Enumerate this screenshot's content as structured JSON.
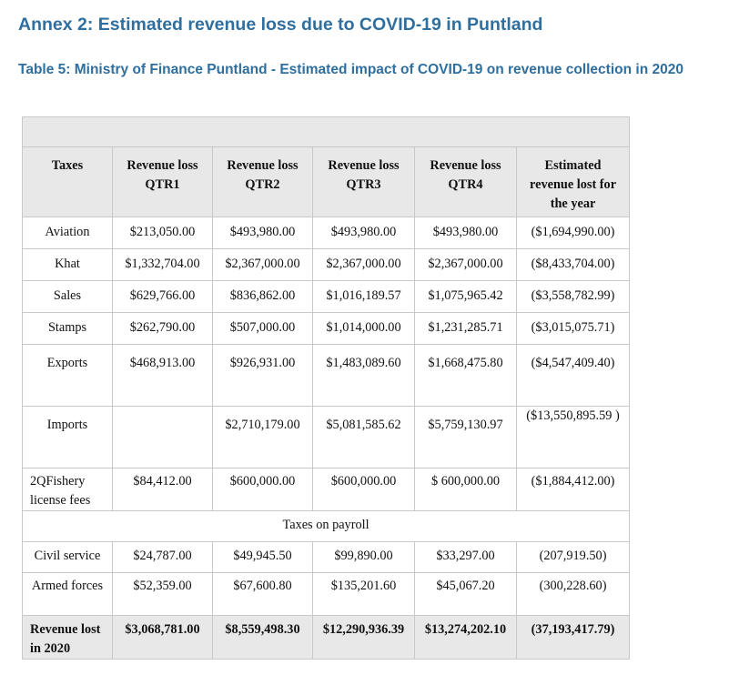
{
  "annex_title": "Annex 2: Estimated revenue loss due to COVID-19 in Puntland",
  "table_title": "Table 5: Ministry of Finance Puntland - Estimated impact of COVID-19 on revenue collection in 2020",
  "headers": {
    "taxes": "Taxes",
    "q1": "Revenue loss QTR1",
    "q2": "Revenue loss QTR2",
    "q3": "Revenue loss QTR3",
    "q4": "Revenue loss QTR4",
    "year": "Estimated revenue lost for the year"
  },
  "rows": [
    {
      "tax": "Aviation",
      "q1": "$213,050.00",
      "q2": "$493,980.00",
      "q3": "$493,980.00",
      "q4": "$493,980.00",
      "year": "($1,694,990.00)"
    },
    {
      "tax": "Khat",
      "q1": "$1,332,704.00",
      "q2": "$2,367,000.00",
      "q3": "$2,367,000.00",
      "q4": "$2,367,000.00",
      "year": "($8,433,704.00)"
    },
    {
      "tax": "Sales",
      "q1": "$629,766.00",
      "q2": "$836,862.00",
      "q3": "$1,016,189.57",
      "q4": "$1,075,965.42",
      "year": "($3,558,782.99)"
    },
    {
      "tax": "Stamps",
      "q1": "$262,790.00",
      "q2": "$507,000.00",
      "q3": "$1,014,000.00",
      "q4": "$1,231,285.71",
      "year": "($3,015,075.71)"
    },
    {
      "tax": "Exports",
      "q1": "$468,913.00",
      "q2": "$926,931.00",
      "q3": "$1,483,089.60",
      "q4": "$1,668,475.80",
      "year": "($4,547,409.40)"
    },
    {
      "tax": "Imports",
      "q1": "",
      "q2": "$2,710,179.00",
      "q3": "$5,081,585.62",
      "q4": "$5,759,130.97",
      "year": "($13,550,895.59 )"
    },
    {
      "tax": "2QFishery license fees",
      "q1": "$84,412.00",
      "q2": "$600,000.00",
      "q3": "$600,000.00",
      "q4": "$ 600,000.00",
      "year": "($1,884,412.00)"
    }
  ],
  "payroll_section": "Taxes on payroll",
  "payroll_rows": [
    {
      "tax": "Civil service",
      "q1": "$24,787.00",
      "q2": "$49,945.50",
      "q3": "$99,890.00",
      "q4": "$33,297.00",
      "year": "(207,919.50)"
    },
    {
      "tax": "Armed forces",
      "q1": "$52,359.00",
      "q2": "$67,600.80",
      "q3": "$135,201.60",
      "q4": "$45,067.20",
      "year": "(300,228.60)"
    }
  ],
  "total": {
    "tax": "Revenue lost in 2020",
    "q1": "$3,068,781.00",
    "q2": "$8,559,498.30",
    "q3": "$12,290,936.39",
    "q4": "$13,274,202.10",
    "year": "(37,193,417.79)"
  }
}
